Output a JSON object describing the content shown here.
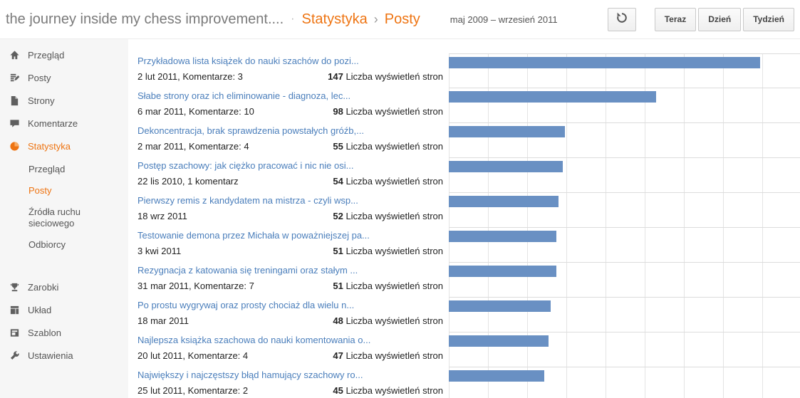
{
  "header": {
    "blog_title": "the journey inside my chess improvement....",
    "title_separator": "·",
    "breadcrumb": {
      "section": "Statystyka",
      "separator": "›",
      "current": "Posty"
    },
    "date_range": "maj 2009 – wrzesień 2011",
    "controls": {
      "now": "Teraz",
      "day": "Dzień",
      "week": "Tydzień"
    }
  },
  "sidebar": {
    "items": [
      {
        "label": "Przegląd",
        "icon": "home-icon"
      },
      {
        "label": "Posty",
        "icon": "posts-icon"
      },
      {
        "label": "Strony",
        "icon": "pages-icon"
      },
      {
        "label": "Komentarze",
        "icon": "comment-icon"
      },
      {
        "label": "Statystyka",
        "icon": "pie-chart-icon",
        "active": true
      },
      {
        "label": "Zarobki",
        "icon": "earnings-icon"
      },
      {
        "label": "Układ",
        "icon": "layout-icon"
      },
      {
        "label": "Szablon",
        "icon": "template-icon"
      },
      {
        "label": "Ustawienia",
        "icon": "wrench-icon"
      }
    ],
    "stats_submenu": [
      {
        "label": "Przegląd"
      },
      {
        "label": "Posty",
        "active": true
      },
      {
        "label": "Źródła ruchu sieciowego"
      },
      {
        "label": "Odbiorcy"
      }
    ]
  },
  "chart_data": {
    "type": "bar",
    "orientation": "horizontal",
    "unit_label": "Liczba wyświetleń stron",
    "scale_max": 166,
    "bar_color": "#6990c3",
    "posts": [
      {
        "title": "Przykładowa lista książek do nauki szachów do pozi...",
        "meta": "2 lut 2011, Komentarze: 3",
        "views": 147
      },
      {
        "title": "Słabe strony oraz ich eliminowanie - diagnoza, lec...",
        "meta": "6 mar 2011, Komentarze: 10",
        "views": 98
      },
      {
        "title": "Dekoncentracja, brak sprawdzenia powstałych gróźb,...",
        "meta": "2 mar 2011, Komentarze: 4",
        "views": 55
      },
      {
        "title": "Postęp szachowy: jak ciężko pracować i nic nie osi...",
        "meta": "22 lis 2010, 1 komentarz",
        "views": 54
      },
      {
        "title": "Pierwszy remis z kandydatem na mistrza - czyli wsp...",
        "meta": "18 wrz 2011",
        "views": 52
      },
      {
        "title": "Testowanie demona przez Michała w poważniejszej pa...",
        "meta": "3 kwi 2011",
        "views": 51
      },
      {
        "title": "Rezygnacja z katowania się treningami oraz stałym ...",
        "meta": "31 mar 2011, Komentarze: 7",
        "views": 51
      },
      {
        "title": "Po prostu wygrywaj oraz prosty chociaż dla wielu n...",
        "meta": "18 mar 2011",
        "views": 48
      },
      {
        "title": "Najlepsza książka szachowa do nauki komentowania o...",
        "meta": "20 lut 2011, Komentarze: 4",
        "views": 47
      },
      {
        "title": "Największy i najczęstszy błąd hamujący szachowy ro...",
        "meta": "25 lut 2011, Komentarze: 2",
        "views": 45
      }
    ]
  },
  "colors": {
    "accent_orange": "#ee7412",
    "link_blue": "#4a7ebb",
    "bar_blue": "#6990c3",
    "sidebar_bg": "#f6f6f6"
  }
}
